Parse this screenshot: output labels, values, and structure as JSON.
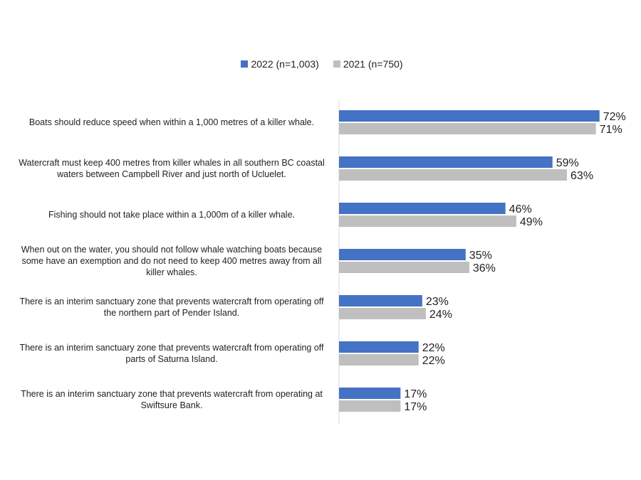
{
  "chart_data": {
    "type": "bar",
    "orientation": "horizontal",
    "title": "",
    "xlabel": "",
    "ylabel": "",
    "xlim": [
      0,
      80
    ],
    "grid": false,
    "legend_position": "top",
    "categories": [
      "Boats should reduce speed when within a 1,000 metres of a killer whale.",
      "Watercraft must keep 400 metres from killer whales in all southern BC coastal waters between Campbell River and just north of Ucluelet.",
      "Fishing should not take place within a 1,000m of a killer whale.",
      "When out on the water, you should not follow whale watching boats because some have an exemption and do not need to keep 400 metres away from all killer whales.",
      "There is an interim sanctuary zone that prevents watercraft from operating off the northern part of Pender Island.",
      "There is an interim sanctuary zone that prevents watercraft from operating off parts of Saturna Island.",
      "There is an interim sanctuary zone that prevents watercraft from operating at Swiftsure Bank."
    ],
    "series": [
      {
        "name": "2022 (n=1,003)",
        "color": "#4472c4",
        "values": [
          72,
          59,
          46,
          35,
          23,
          22,
          17
        ]
      },
      {
        "name": "2021 (n=750)",
        "color": "#bfbfbf",
        "values": [
          71,
          63,
          49,
          36,
          24,
          22,
          17
        ]
      }
    ],
    "value_suffix": "%"
  }
}
